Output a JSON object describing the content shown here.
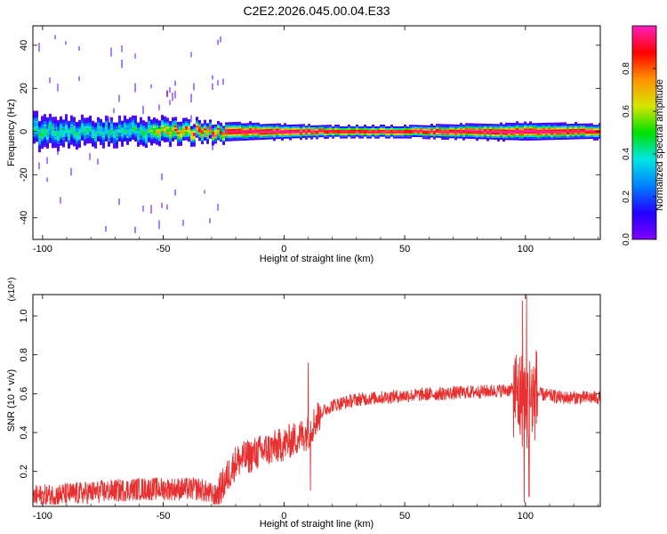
{
  "title": "C2E2.2026.045.00.04.E33",
  "colors": {
    "snr_line": "#e83030",
    "axis": "#000000"
  },
  "chart_data": [
    {
      "type": "heatmap",
      "xlabel": "Height of straight line (km)",
      "ylabel": "Frequency (Hz)",
      "xlim": [
        -104,
        131
      ],
      "ylim": [
        -50,
        49
      ],
      "xticks": [
        "-100",
        "-50",
        "0",
        "50",
        "100"
      ],
      "yticks": [
        "-40",
        "-20",
        "0",
        "20",
        "40"
      ],
      "grid": false,
      "colorbar": {
        "label": "Normalized spectral amplitude",
        "range": [
          0,
          1
        ],
        "ticks": [
          "0.0",
          "0.2",
          "0.4",
          "0.6",
          "0.8"
        ],
        "colormap": [
          "#7f00ff",
          "#2200ff",
          "#0080ff",
          "#00e5e5",
          "#00e000",
          "#d8e600",
          "#ff9000",
          "#ff0000",
          "#ff20c0"
        ]
      },
      "band": {
        "center_frequency": 0,
        "features": [
          {
            "x": -100,
            "halfwidth": 6,
            "peak": 0.5
          },
          {
            "x": -80,
            "halfwidth": 5,
            "peak": 0.45
          },
          {
            "x": -60,
            "halfwidth": 5,
            "peak": 0.5
          },
          {
            "x": -45,
            "halfwidth": 4,
            "peak": 0.9
          },
          {
            "x": -35,
            "halfwidth": 3.5,
            "peak": 0.95
          },
          {
            "x": 0,
            "halfwidth": 2.5,
            "peak": 1.0
          },
          {
            "x": 20,
            "halfwidth": 2,
            "peak": 0.95
          },
          {
            "x": 50,
            "halfwidth": 2,
            "peak": 0.95
          },
          {
            "x": 100,
            "halfwidth": 3,
            "peak": 1.0
          },
          {
            "x": 130,
            "halfwidth": 2.5,
            "peak": 0.95
          }
        ]
      }
    },
    {
      "type": "line",
      "xlabel": "Height of straight line (km)",
      "ylabel": "SNR (10 * v/v)",
      "y_multiplier": "(x10⁴)",
      "xlim": [
        -104,
        131
      ],
      "ylim": [
        0.02,
        1.11
      ],
      "xticks": [
        "-100",
        "-50",
        "0",
        "50",
        "100"
      ],
      "yticks": [
        "0.2",
        "0.4",
        "0.6",
        "0.8",
        "1.0"
      ],
      "grid": false,
      "series": [
        {
          "trend_x": [
            -104,
            -60,
            -35,
            -28,
            -20,
            -10,
            0,
            5,
            10,
            15,
            20,
            30,
            50,
            80,
            95,
            100,
            105,
            115,
            131
          ],
          "trend_y": [
            0.07,
            0.11,
            0.11,
            0.07,
            0.25,
            0.3,
            0.34,
            0.37,
            0.4,
            0.5,
            0.54,
            0.57,
            0.59,
            0.61,
            0.62,
            0.55,
            0.6,
            0.58,
            0.58
          ],
          "spikes": [
            {
              "x": 10,
              "y": 0.76
            },
            {
              "x": 11,
              "y": 0.1
            },
            {
              "x": 98.8,
              "y": 1.08
            },
            {
              "x": 99.5,
              "y": 0.04
            },
            {
              "x": 100.5,
              "y": 1.11
            },
            {
              "x": 101.5,
              "y": 0.07
            }
          ]
        }
      ]
    }
  ]
}
